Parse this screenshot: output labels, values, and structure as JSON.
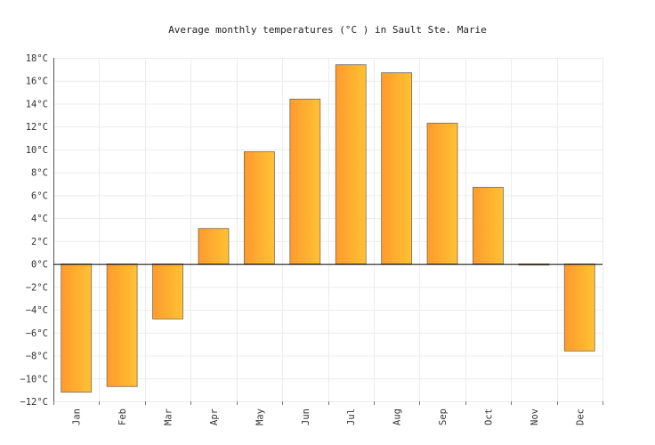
{
  "chart_data": {
    "type": "bar",
    "title": "Average monthly temperatures (°C ) in Sault Ste. Marie",
    "xlabel": "",
    "ylabel": "",
    "categories": [
      "Jan",
      "Feb",
      "Mar",
      "Apr",
      "May",
      "Jun",
      "Jul",
      "Aug",
      "Sep",
      "Oct",
      "Nov",
      "Dec"
    ],
    "values": [
      -11.2,
      -10.7,
      -4.8,
      3.1,
      9.8,
      14.4,
      17.4,
      16.7,
      12.3,
      6.7,
      -0.1,
      -7.6
    ],
    "ylim": [
      -12,
      18
    ],
    "yticks": [
      18,
      16,
      14,
      12,
      10,
      8,
      6,
      4,
      2,
      0,
      -2,
      -4,
      -6,
      -8,
      -10,
      -12
    ],
    "ytick_labels": [
      "18°C",
      "16°C",
      "14°C",
      "12°C",
      "10°C",
      "8°C",
      "6°C",
      "4°C",
      "2°C",
      "0°C",
      "−2°C",
      "−4°C",
      "−6°C",
      "−8°C",
      "−10°C",
      "−12°C"
    ],
    "grid": true,
    "legend": "none",
    "colors": {
      "bar_gradient_start": "#ff9a2e",
      "bar_gradient_end": "#ffc233",
      "bar_stroke": "#7a6a55",
      "grid": "#ececec",
      "zero_line": "#000000"
    }
  }
}
